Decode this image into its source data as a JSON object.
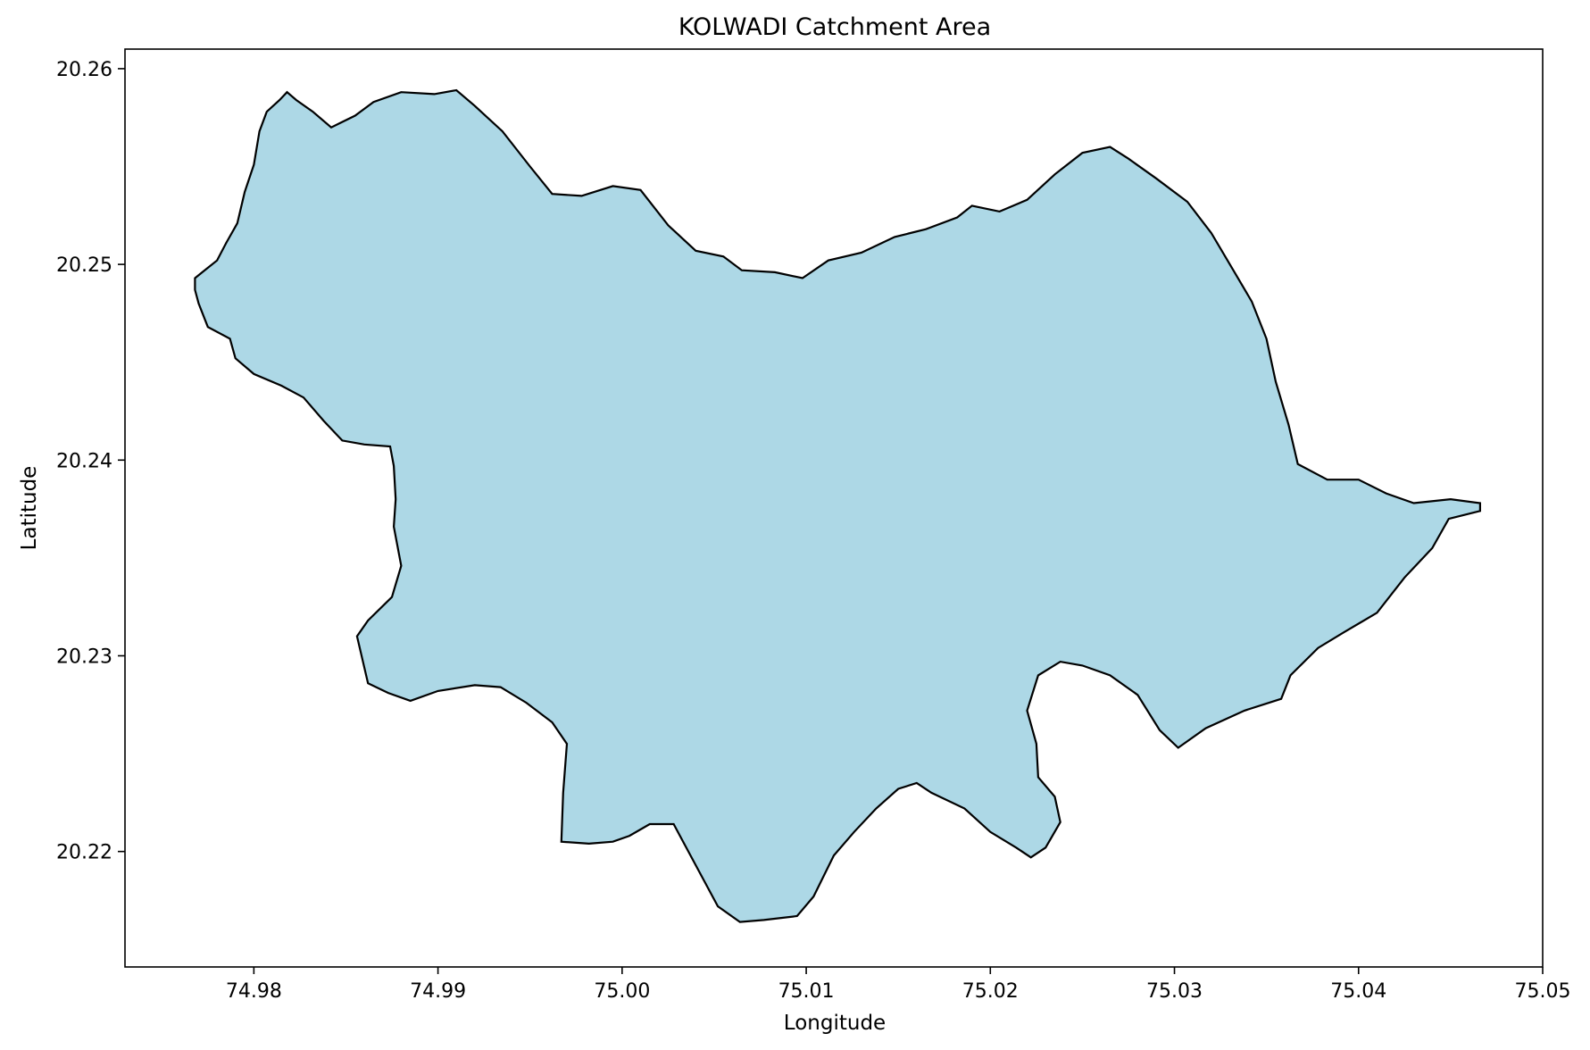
{
  "chart_data": {
    "type": "map",
    "title": "KOLWADI Catchment Area",
    "xlabel": "Longitude",
    "ylabel": "Latitude",
    "xlim": [
      74.973,
      75.05
    ],
    "ylim": [
      20.2141,
      20.261
    ],
    "x_ticks": [
      "74.98",
      "74.99",
      "75.00",
      "75.01",
      "75.02",
      "75.03",
      "75.04",
      "75.05"
    ],
    "y_ticks": [
      "20.22",
      "20.23",
      "20.24",
      "20.25",
      "20.26"
    ],
    "grid": false,
    "fill_color": "#add8e6",
    "edge_color": "#000000",
    "polygon": [
      [
        74.9768,
        20.2493
      ],
      [
        74.9772,
        20.2496
      ],
      [
        74.978,
        20.2502
      ],
      [
        74.9785,
        20.2511
      ],
      [
        74.9791,
        20.2521
      ],
      [
        74.9795,
        20.2537
      ],
      [
        74.98,
        20.2551
      ],
      [
        74.9803,
        20.2568
      ],
      [
        74.9807,
        20.2578
      ],
      [
        74.9814,
        20.2584
      ],
      [
        74.9818,
        20.2588
      ],
      [
        74.9823,
        20.2584
      ],
      [
        74.9832,
        20.2578
      ],
      [
        74.9842,
        20.257
      ],
      [
        74.9855,
        20.2576
      ],
      [
        74.9865,
        20.2583
      ],
      [
        74.988,
        20.2588
      ],
      [
        74.9898,
        20.2587
      ],
      [
        74.991,
        20.2589
      ],
      [
        74.992,
        20.2581
      ],
      [
        74.9935,
        20.2568
      ],
      [
        74.995,
        20.255
      ],
      [
        74.9962,
        20.2536
      ],
      [
        74.9978,
        20.2535
      ],
      [
        74.9995,
        20.254
      ],
      [
        75.001,
        20.2538
      ],
      [
        75.0025,
        20.252
      ],
      [
        75.004,
        20.2507
      ],
      [
        75.0055,
        20.2504
      ],
      [
        75.0065,
        20.2497
      ],
      [
        75.0083,
        20.2496
      ],
      [
        75.0098,
        20.2493
      ],
      [
        75.0112,
        20.2502
      ],
      [
        75.013,
        20.2506
      ],
      [
        75.0148,
        20.2514
      ],
      [
        75.0165,
        20.2518
      ],
      [
        75.0182,
        20.2524
      ],
      [
        75.019,
        20.253
      ],
      [
        75.0205,
        20.2527
      ],
      [
        75.022,
        20.2533
      ],
      [
        75.0235,
        20.2546
      ],
      [
        75.025,
        20.2557
      ],
      [
        75.0265,
        20.256
      ],
      [
        75.0275,
        20.2554
      ],
      [
        75.029,
        20.2544
      ],
      [
        75.0307,
        20.2532
      ],
      [
        75.032,
        20.2516
      ],
      [
        75.0332,
        20.2497
      ],
      [
        75.0342,
        20.2481
      ],
      [
        75.035,
        20.2462
      ],
      [
        75.0355,
        20.244
      ],
      [
        75.0362,
        20.2418
      ],
      [
        75.0367,
        20.2398
      ],
      [
        75.0383,
        20.239
      ],
      [
        75.04,
        20.239
      ],
      [
        75.0415,
        20.2383
      ],
      [
        75.043,
        20.2378
      ],
      [
        75.045,
        20.238
      ],
      [
        75.0466,
        20.2378
      ],
      [
        75.0466,
        20.2374
      ],
      [
        75.0449,
        20.237
      ],
      [
        75.044,
        20.2355
      ],
      [
        75.0425,
        20.234
      ],
      [
        75.041,
        20.2322
      ],
      [
        75.0392,
        20.2312
      ],
      [
        75.0378,
        20.2304
      ],
      [
        75.0363,
        20.229
      ],
      [
        75.0358,
        20.2278
      ],
      [
        75.0338,
        20.2272
      ],
      [
        75.0317,
        20.2263
      ],
      [
        75.0302,
        20.2253
      ],
      [
        75.0292,
        20.2262
      ],
      [
        75.028,
        20.228
      ],
      [
        75.0265,
        20.229
      ],
      [
        75.025,
        20.2295
      ],
      [
        75.0238,
        20.2297
      ],
      [
        75.0226,
        20.229
      ],
      [
        75.022,
        20.2272
      ],
      [
        75.0225,
        20.2255
      ],
      [
        75.0226,
        20.2238
      ],
      [
        75.0235,
        20.2228
      ],
      [
        75.0238,
        20.2215
      ],
      [
        75.023,
        20.2202
      ],
      [
        75.0222,
        20.2197
      ],
      [
        75.0214,
        20.2202
      ],
      [
        75.02,
        20.221
      ],
      [
        75.0186,
        20.2222
      ],
      [
        75.0168,
        20.223
      ],
      [
        75.016,
        20.2235
      ],
      [
        75.015,
        20.2232
      ],
      [
        75.0138,
        20.2222
      ],
      [
        75.0126,
        20.221
      ],
      [
        75.0115,
        20.2198
      ],
      [
        75.0104,
        20.2177
      ],
      [
        75.0095,
        20.2167
      ],
      [
        75.0077,
        20.2165
      ],
      [
        75.0064,
        20.2164
      ],
      [
        75.0052,
        20.2172
      ],
      [
        75.004,
        20.2193
      ],
      [
        75.0028,
        20.2214
      ],
      [
        75.0015,
        20.2214
      ],
      [
        75.0004,
        20.2208
      ],
      [
        74.9995,
        20.2205
      ],
      [
        74.9982,
        20.2204
      ],
      [
        74.9967,
        20.2205
      ],
      [
        74.9968,
        20.223
      ],
      [
        74.997,
        20.2255
      ],
      [
        74.9962,
        20.2266
      ],
      [
        74.9948,
        20.2276
      ],
      [
        74.9934,
        20.2284
      ],
      [
        74.992,
        20.2285
      ],
      [
        74.99,
        20.2282
      ],
      [
        74.9885,
        20.2277
      ],
      [
        74.9873,
        20.2281
      ],
      [
        74.9862,
        20.2286
      ],
      [
        74.9856,
        20.231
      ],
      [
        74.9862,
        20.2318
      ],
      [
        74.9875,
        20.233
      ],
      [
        74.988,
        20.2346
      ],
      [
        74.9876,
        20.2366
      ],
      [
        74.9877,
        20.238
      ],
      [
        74.9876,
        20.2397
      ],
      [
        74.9874,
        20.2407
      ],
      [
        74.986,
        20.2408
      ],
      [
        74.9848,
        20.241
      ],
      [
        74.9838,
        20.242
      ],
      [
        74.9827,
        20.2432
      ],
      [
        74.9815,
        20.2438
      ],
      [
        74.98,
        20.2444
      ],
      [
        74.979,
        20.2452
      ],
      [
        74.9787,
        20.2462
      ],
      [
        74.9775,
        20.2468
      ],
      [
        74.977,
        20.248
      ],
      [
        74.9768,
        20.2487
      ]
    ]
  }
}
